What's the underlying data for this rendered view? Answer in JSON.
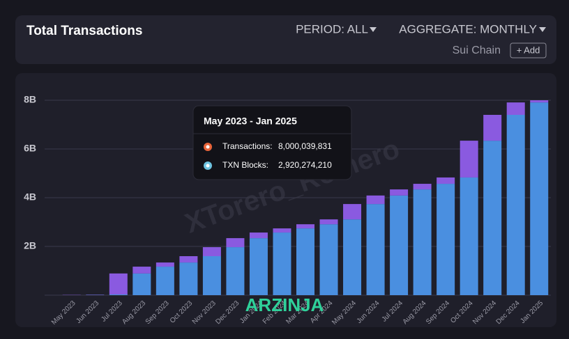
{
  "header": {
    "title": "Total Transactions",
    "period": "PERIOD: ALL",
    "aggregate": "AGGREGATE: MONTHLY",
    "chain": "Sui Chain",
    "add_button": "+ Add"
  },
  "chart_data": {
    "type": "stacked-bar",
    "categories": [
      "May 2023",
      "Jun 2023",
      "Jul 2023",
      "Aug 2023",
      "Sep 2023",
      "Oct 2023",
      "Nov 2023",
      "Dec 2023",
      "Jan 2024",
      "Feb 2024",
      "Mar 2024",
      "Apr 2024",
      "May 2024",
      "Jun 2024",
      "Jul 2024",
      "Aug 2024",
      "Sep 2024",
      "Oct 2024",
      "Nov 2024",
      "Dec 2024",
      "Jan 2025"
    ],
    "series": [
      {
        "color": "#4a8fe0",
        "values": [
          0,
          0.01,
          0.03,
          0.89,
          1.17,
          1.34,
          1.6,
          1.97,
          2.34,
          2.57,
          2.74,
          2.91,
          3.11,
          3.74,
          4.09,
          4.34,
          4.57,
          4.83,
          6.34,
          7.4,
          7.91
        ]
      },
      {
        "color": "#8a5ae0",
        "values": [
          0.01,
          0.01,
          0.86,
          0.28,
          0.17,
          0.26,
          0.37,
          0.37,
          0.23,
          0.17,
          0.17,
          0.2,
          0.63,
          0.35,
          0.25,
          0.23,
          0.26,
          1.51,
          1.06,
          0.51,
          0.09
        ]
      }
    ],
    "ylim": [
      0,
      8
    ],
    "yticks": [
      {
        "value": 2,
        "label": "2B"
      },
      {
        "value": 4,
        "label": "4B"
      },
      {
        "value": 6,
        "label": "6B"
      },
      {
        "value": 8,
        "label": "8B"
      }
    ],
    "grid": true
  },
  "tooltip": {
    "title": "May 2023 - Jan 2025",
    "rows": [
      {
        "label": "Transactions:",
        "value": "8,000,039,831",
        "color": "#e8643a"
      },
      {
        "label": "TXN Blocks:",
        "value": "2,920,274,210",
        "color": "#6ec3e0"
      }
    ]
  },
  "watermarks": [
    "XTorero_Romero",
    "ARZINJA"
  ]
}
